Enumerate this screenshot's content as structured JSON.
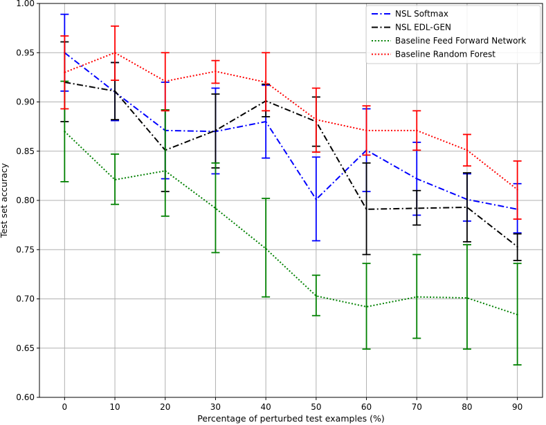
{
  "chart_data": {
    "type": "line",
    "title": "",
    "xlabel": "Percentage of perturbed test examples (%)",
    "ylabel": "Test set accuracy",
    "x": [
      0,
      10,
      20,
      30,
      40,
      50,
      60,
      70,
      80,
      90
    ],
    "xticks": [
      "0",
      "10",
      "20",
      "30",
      "40",
      "50",
      "60",
      "70",
      "80",
      "90"
    ],
    "yticks": [
      "0.60",
      "0.65",
      "0.70",
      "0.75",
      "0.80",
      "0.85",
      "0.90",
      "0.95",
      "1.00"
    ],
    "xlim": [
      -5,
      95
    ],
    "ylim": [
      0.6,
      1.0
    ],
    "grid": true,
    "legend_position": "top-right",
    "series": [
      {
        "name": "NSL Softmax",
        "color": "#0000ff",
        "linestyle": "dashdot",
        "values": [
          0.95,
          0.91,
          0.871,
          0.87,
          0.88,
          0.801,
          0.851,
          0.822,
          0.801,
          0.791
        ],
        "err_low": [
          0.911,
          0.881,
          0.822,
          0.827,
          0.843,
          0.759,
          0.809,
          0.785,
          0.779,
          0.767
        ],
        "err_high": [
          0.989,
          0.94,
          0.92,
          0.914,
          0.917,
          0.844,
          0.893,
          0.859,
          0.827,
          0.817
        ]
      },
      {
        "name": "NSL EDL-GEN",
        "color": "#000000",
        "linestyle": "dashdot",
        "values": [
          0.92,
          0.911,
          0.851,
          0.871,
          0.901,
          0.88,
          0.791,
          0.792,
          0.793,
          0.753
        ],
        "err_low": [
          0.88,
          0.882,
          0.809,
          0.833,
          0.885,
          0.855,
          0.745,
          0.775,
          0.758,
          0.739
        ],
        "err_high": [
          0.961,
          0.94,
          0.892,
          0.908,
          0.918,
          0.905,
          0.838,
          0.81,
          0.828,
          0.766
        ]
      },
      {
        "name": "Baseline Feed Forward Network",
        "color": "#008000",
        "linestyle": "dotted",
        "values": [
          0.87,
          0.821,
          0.83,
          0.792,
          0.751,
          0.703,
          0.692,
          0.702,
          0.701,
          0.684
        ],
        "err_low": [
          0.819,
          0.796,
          0.784,
          0.747,
          0.702,
          0.683,
          0.649,
          0.66,
          0.649,
          0.633
        ],
        "err_high": [
          0.921,
          0.847,
          0.892,
          0.838,
          0.802,
          0.724,
          0.736,
          0.745,
          0.755,
          0.736
        ]
      },
      {
        "name": "Baseline Random Forest",
        "color": "#ff0000",
        "linestyle": "dotted",
        "values": [
          0.93,
          0.95,
          0.921,
          0.931,
          0.92,
          0.882,
          0.871,
          0.871,
          0.851,
          0.811
        ],
        "err_low": [
          0.893,
          0.922,
          0.891,
          0.919,
          0.891,
          0.849,
          0.846,
          0.851,
          0.835,
          0.781
        ],
        "err_high": [
          0.967,
          0.977,
          0.95,
          0.942,
          0.95,
          0.914,
          0.896,
          0.891,
          0.867,
          0.84
        ]
      }
    ]
  }
}
